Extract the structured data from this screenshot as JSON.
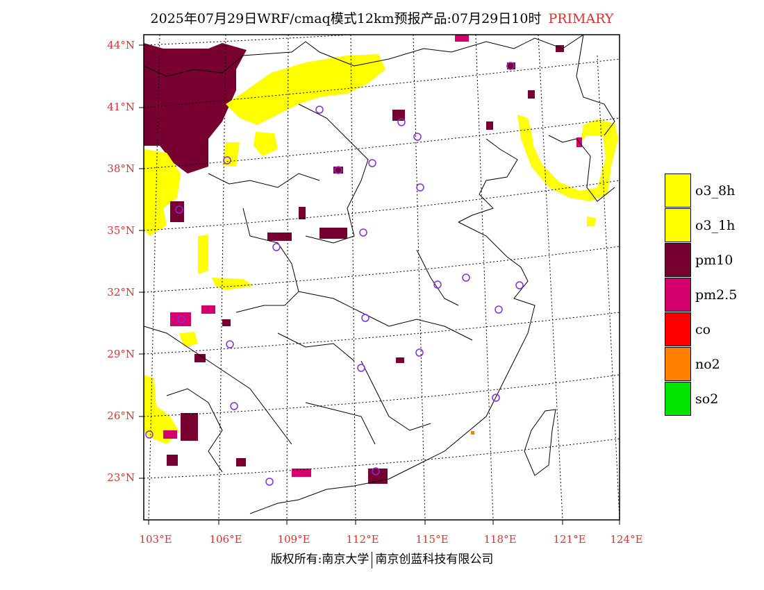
{
  "title": {
    "main": "2025年07月29日WRF/cmaq模式12km预报产品:07月29日10时",
    "tag": "PRIMARY"
  },
  "map": {
    "lat_labels": [
      "44°N",
      "41°N",
      "38°N",
      "35°N",
      "32°N",
      "29°N",
      "26°N",
      "23°N"
    ],
    "lon_labels": [
      "103°E",
      "106°E",
      "109°E",
      "112°E",
      "115°E",
      "118°E",
      "121°E",
      "124°E"
    ],
    "colors": {
      "o3_8h": "#ffff00",
      "o3_1h": "#ffff00",
      "pm10": "#780030",
      "pm25": "#d4006e",
      "co": "#ff0000",
      "no2": "#ff7f00",
      "so2": "#00e400",
      "station": "#8a2be2"
    }
  },
  "legend": [
    {
      "label": "o3_8h",
      "color": "#ffff00"
    },
    {
      "label": "o3_1h",
      "color": "#ffff00"
    },
    {
      "label": "pm10",
      "color": "#780030"
    },
    {
      "label": "pm2.5",
      "color": "#d4006e"
    },
    {
      "label": "co",
      "color": "#ff0000"
    },
    {
      "label": "no2",
      "color": "#ff7f00"
    },
    {
      "label": "so2",
      "color": "#00e400"
    }
  ],
  "footer": {
    "left": "版权所有:南京大学",
    "right": "南京创蓝科技有限公司"
  }
}
